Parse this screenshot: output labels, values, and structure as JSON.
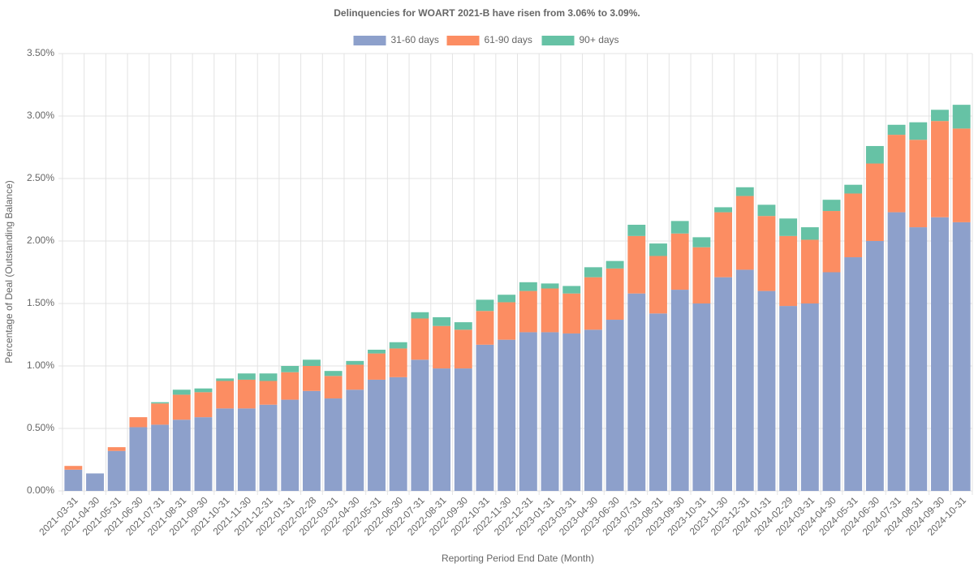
{
  "chart_data": {
    "type": "stacked_bar",
    "title": "Delinquencies for WOART 2021-B have risen from 3.06% to 3.09%.",
    "x_label": "Reporting Period End Date (Month)",
    "y_label": "Percentage of Deal (Outstanding Balance)",
    "categories": [
      "2021-03-31",
      "2021-04-30",
      "2021-05-31",
      "2021-06-30",
      "2021-07-31",
      "2021-08-31",
      "2021-09-30",
      "2021-10-31",
      "2021-11-30",
      "2021-12-31",
      "2022-01-31",
      "2022-02-28",
      "2022-03-31",
      "2022-04-30",
      "2022-05-31",
      "2022-06-30",
      "2022-07-31",
      "2022-08-31",
      "2022-09-30",
      "2022-10-31",
      "2022-11-30",
      "2022-12-31",
      "2023-01-31",
      "2023-03-31",
      "2023-04-30",
      "2023-06-30",
      "2023-07-31",
      "2023-08-31",
      "2023-09-30",
      "2023-10-31",
      "2023-11-30",
      "2023-12-31",
      "2024-01-31",
      "2024-02-29",
      "2024-03-31",
      "2024-04-30",
      "2024-05-31",
      "2024-06-30",
      "2024-07-31",
      "2024-08-31",
      "2024-09-30",
      "2024-10-31"
    ],
    "series": [
      {
        "name": "31-60 days",
        "color": "#8da0cb",
        "values": [
          0.17,
          0.14,
          0.32,
          0.51,
          0.53,
          0.57,
          0.59,
          0.66,
          0.66,
          0.69,
          0.73,
          0.8,
          0.74,
          0.81,
          0.89,
          0.91,
          1.05,
          0.98,
          0.98,
          1.17,
          1.21,
          1.27,
          1.27,
          1.26,
          1.29,
          1.37,
          1.58,
          1.42,
          1.61,
          1.5,
          1.71,
          1.77,
          1.6,
          1.48,
          1.5,
          1.75,
          1.87,
          2.0,
          2.23,
          2.11,
          2.19,
          2.15
        ]
      },
      {
        "name": "61-90 days",
        "color": "#fc8d62",
        "values": [
          0.03,
          0,
          0.03,
          0.08,
          0.17,
          0.2,
          0.2,
          0.22,
          0.23,
          0.19,
          0.22,
          0.2,
          0.18,
          0.2,
          0.21,
          0.23,
          0.33,
          0.34,
          0.31,
          0.27,
          0.3,
          0.33,
          0.35,
          0.32,
          0.42,
          0.41,
          0.46,
          0.46,
          0.45,
          0.45,
          0.52,
          0.59,
          0.6,
          0.56,
          0.51,
          0.49,
          0.51,
          0.62,
          0.62,
          0.7,
          0.77,
          0.75
        ]
      },
      {
        "name": "90+ days",
        "color": "#66c2a5",
        "values": [
          0,
          0,
          0,
          0,
          0.01,
          0.04,
          0.03,
          0.02,
          0.05,
          0.06,
          0.05,
          0.05,
          0.04,
          0.03,
          0.03,
          0.05,
          0.05,
          0.07,
          0.06,
          0.09,
          0.06,
          0.07,
          0.04,
          0.06,
          0.08,
          0.06,
          0.09,
          0.1,
          0.1,
          0.08,
          0.04,
          0.07,
          0.09,
          0.14,
          0.1,
          0.09,
          0.07,
          0.14,
          0.08,
          0.14,
          0.09,
          0.19
        ]
      }
    ],
    "ylim": [
      0,
      3.5
    ],
    "yticks": [
      {
        "value": 0,
        "label": "0.00%"
      },
      {
        "value": 0.5,
        "label": "0.50%"
      },
      {
        "value": 1,
        "label": "1.00%"
      },
      {
        "value": 1.5,
        "label": "1.50%"
      },
      {
        "value": 2,
        "label": "2.00%"
      },
      {
        "value": 2.5,
        "label": "2.50%"
      },
      {
        "value": 3,
        "label": "3.00%"
      },
      {
        "value": 3.5,
        "label": "3.50%"
      }
    ],
    "grid": true,
    "legend": "top"
  }
}
